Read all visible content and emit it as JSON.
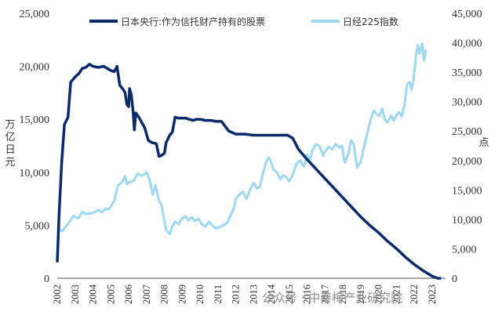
{
  "chart_data": {
    "type": "line",
    "title": "",
    "left_axis": {
      "label": "万亿日元",
      "ylim": [
        0,
        25000
      ],
      "ticks": [
        "0",
        "5,000",
        "10,000",
        "15,000",
        "20,000",
        "25,000"
      ]
    },
    "right_axis": {
      "label": "点",
      "ylim": [
        0,
        45000
      ],
      "ticks": [
        "0",
        "5,000",
        "10,000",
        "15,000",
        "20,000",
        "25,000",
        "30,000",
        "35,000",
        "40,000",
        "45,000"
      ]
    },
    "x_ticks": [
      "2002",
      "2003",
      "2004",
      "2005",
      "2006",
      "2007",
      "2008",
      "2009",
      "2010",
      "2011",
      "2012",
      "2013",
      "2014",
      "2015",
      "2016",
      "2017",
      "2018",
      "2019",
      "2020",
      "2021",
      "2022",
      "2023"
    ],
    "xlim": [
      2002.0,
      2023.75
    ],
    "legend_position": "top",
    "series": [
      {
        "name": "日本央行:作为信托财产持有的股票",
        "axis": "left",
        "color": "#0b2a6b",
        "points": [
          [
            2002.0,
            1500
          ],
          [
            2002.1,
            6000
          ],
          [
            2002.25,
            11000
          ],
          [
            2002.4,
            14500
          ],
          [
            2002.6,
            15200
          ],
          [
            2002.75,
            18500
          ],
          [
            2003.0,
            19000
          ],
          [
            2003.2,
            19300
          ],
          [
            2003.4,
            19800
          ],
          [
            2003.6,
            19900
          ],
          [
            2003.8,
            20200
          ],
          [
            2004.0,
            20000
          ],
          [
            2004.3,
            19900
          ],
          [
            2004.6,
            20000
          ],
          [
            2004.8,
            19800
          ],
          [
            2005.0,
            19600
          ],
          [
            2005.2,
            19500
          ],
          [
            2005.35,
            20000
          ],
          [
            2005.5,
            18200
          ],
          [
            2005.7,
            17800
          ],
          [
            2005.8,
            17500
          ],
          [
            2005.9,
            16400
          ],
          [
            2006.0,
            16200
          ],
          [
            2006.05,
            17900
          ],
          [
            2006.15,
            17300
          ],
          [
            2006.25,
            15700
          ],
          [
            2006.32,
            14000
          ],
          [
            2006.4,
            15600
          ],
          [
            2006.6,
            15100
          ],
          [
            2006.8,
            14500
          ],
          [
            2006.9,
            14200
          ],
          [
            2007.1,
            13000
          ],
          [
            2007.3,
            12800
          ],
          [
            2007.55,
            12700
          ],
          [
            2007.7,
            11500
          ],
          [
            2007.85,
            11600
          ],
          [
            2008.0,
            11800
          ],
          [
            2008.1,
            12800
          ],
          [
            2008.3,
            13500
          ],
          [
            2008.45,
            13800
          ],
          [
            2008.6,
            15200
          ],
          [
            2008.8,
            15100
          ],
          [
            2009.0,
            15100
          ],
          [
            2009.2,
            15100
          ],
          [
            2009.4,
            15000
          ],
          [
            2009.6,
            14900
          ],
          [
            2009.8,
            15000
          ],
          [
            2010.0,
            15000
          ],
          [
            2010.3,
            14900
          ],
          [
            2010.6,
            14900
          ],
          [
            2010.9,
            14800
          ],
          [
            2011.2,
            14800
          ],
          [
            2011.6,
            13900
          ],
          [
            2012.0,
            13600
          ],
          [
            2012.5,
            13600
          ],
          [
            2013.0,
            13500
          ],
          [
            2013.5,
            13500
          ],
          [
            2014.0,
            13500
          ],
          [
            2014.5,
            13500
          ],
          [
            2014.9,
            13500
          ],
          [
            2015.2,
            13200
          ],
          [
            2015.5,
            12200
          ],
          [
            2015.8,
            11600
          ],
          [
            2016.0,
            11200
          ],
          [
            2016.5,
            10300
          ],
          [
            2017.0,
            9400
          ],
          [
            2017.5,
            8500
          ],
          [
            2018.0,
            7600
          ],
          [
            2018.5,
            6700
          ],
          [
            2019.0,
            5800
          ],
          [
            2019.5,
            5000
          ],
          [
            2020.0,
            4300
          ],
          [
            2020.5,
            3500
          ],
          [
            2021.0,
            2800
          ],
          [
            2021.5,
            2000
          ],
          [
            2022.0,
            1300
          ],
          [
            2022.5,
            700
          ],
          [
            2023.0,
            200
          ],
          [
            2023.3,
            0
          ],
          [
            2023.5,
            0
          ]
        ]
      },
      {
        "name": "日经225指数",
        "axis": "right",
        "color": "#9ed8f2",
        "points": [
          [
            2002.0,
            8700
          ],
          [
            2002.15,
            8200
          ],
          [
            2002.3,
            8000
          ],
          [
            2002.5,
            8900
          ],
          [
            2002.7,
            9600
          ],
          [
            2002.9,
            10600
          ],
          [
            2003.0,
            10400
          ],
          [
            2003.2,
            10200
          ],
          [
            2003.4,
            11300
          ],
          [
            2003.6,
            10900
          ],
          [
            2003.8,
            11000
          ],
          [
            2004.0,
            11100
          ],
          [
            2004.3,
            11600
          ],
          [
            2004.5,
            11200
          ],
          [
            2004.7,
            11800
          ],
          [
            2004.9,
            11700
          ],
          [
            2005.2,
            13200
          ],
          [
            2005.4,
            15800
          ],
          [
            2005.6,
            16200
          ],
          [
            2005.8,
            17300
          ],
          [
            2005.9,
            16000
          ],
          [
            2006.1,
            16400
          ],
          [
            2006.3,
            16600
          ],
          [
            2006.5,
            17800
          ],
          [
            2006.7,
            17400
          ],
          [
            2006.9,
            17700
          ],
          [
            2007.0,
            18000
          ],
          [
            2007.2,
            16500
          ],
          [
            2007.35,
            14200
          ],
          [
            2007.5,
            15800
          ],
          [
            2007.7,
            13200
          ],
          [
            2007.85,
            12300
          ],
          [
            2008.0,
            9700
          ],
          [
            2008.1,
            8200
          ],
          [
            2008.3,
            7500
          ],
          [
            2008.45,
            8900
          ],
          [
            2008.6,
            9600
          ],
          [
            2008.8,
            9200
          ],
          [
            2009.0,
            10200
          ],
          [
            2009.2,
            10500
          ],
          [
            2009.35,
            9800
          ],
          [
            2009.55,
            10400
          ],
          [
            2009.7,
            9700
          ],
          [
            2009.9,
            10100
          ],
          [
            2010.1,
            9200
          ],
          [
            2010.3,
            8800
          ],
          [
            2010.5,
            9600
          ],
          [
            2010.7,
            8900
          ],
          [
            2010.9,
            8500
          ],
          [
            2011.1,
            8700
          ],
          [
            2011.3,
            9000
          ],
          [
            2011.5,
            9300
          ],
          [
            2011.7,
            10600
          ],
          [
            2011.9,
            12000
          ],
          [
            2012.0,
            13500
          ],
          [
            2012.2,
            14200
          ],
          [
            2012.4,
            14700
          ],
          [
            2012.6,
            13500
          ],
          [
            2012.8,
            15000
          ],
          [
            2013.0,
            16200
          ],
          [
            2013.2,
            15200
          ],
          [
            2013.35,
            15600
          ],
          [
            2013.5,
            17500
          ],
          [
            2013.7,
            19800
          ],
          [
            2013.85,
            20500
          ],
          [
            2013.95,
            20000
          ],
          [
            2014.1,
            18500
          ],
          [
            2014.3,
            18000
          ],
          [
            2014.5,
            16800
          ],
          [
            2014.65,
            17500
          ],
          [
            2014.8,
            17300
          ],
          [
            2015.0,
            16500
          ],
          [
            2015.2,
            17600
          ],
          [
            2015.4,
            19500
          ],
          [
            2015.6,
            20000
          ],
          [
            2015.8,
            19000
          ],
          [
            2015.9,
            19800
          ],
          [
            2016.0,
            21000
          ],
          [
            2016.15,
            20000
          ],
          [
            2016.3,
            21800
          ],
          [
            2016.5,
            22800
          ],
          [
            2016.7,
            22400
          ],
          [
            2016.9,
            20800
          ],
          [
            2017.0,
            21500
          ],
          [
            2017.2,
            22300
          ],
          [
            2017.4,
            21900
          ],
          [
            2017.6,
            22800
          ],
          [
            2017.8,
            22200
          ],
          [
            2017.95,
            22500
          ],
          [
            2018.1,
            19700
          ],
          [
            2018.3,
            21000
          ],
          [
            2018.45,
            23400
          ],
          [
            2018.6,
            22800
          ],
          [
            2018.8,
            18800
          ],
          [
            2019.0,
            19800
          ],
          [
            2019.2,
            22500
          ],
          [
            2019.4,
            25000
          ],
          [
            2019.6,
            27500
          ],
          [
            2019.75,
            28500
          ],
          [
            2019.9,
            27800
          ],
          [
            2020.05,
            27600
          ],
          [
            2020.2,
            28800
          ],
          [
            2020.35,
            27000
          ],
          [
            2020.5,
            26500
          ],
          [
            2020.7,
            27600
          ],
          [
            2020.85,
            26800
          ],
          [
            2021.0,
            27700
          ],
          [
            2021.15,
            28200
          ],
          [
            2021.3,
            27500
          ],
          [
            2021.45,
            29500
          ],
          [
            2021.6,
            33000
          ],
          [
            2021.75,
            33300
          ],
          [
            2021.85,
            32000
          ],
          [
            2021.95,
            33500
          ],
          [
            2022.1,
            38000
          ],
          [
            2022.2,
            39600
          ],
          [
            2022.3,
            38200
          ],
          [
            2022.45,
            39900
          ],
          [
            2022.55,
            37000
          ],
          [
            2022.65,
            38800
          ]
        ]
      }
    ]
  },
  "watermark": "公众号 · 中泰梅产业研究院"
}
